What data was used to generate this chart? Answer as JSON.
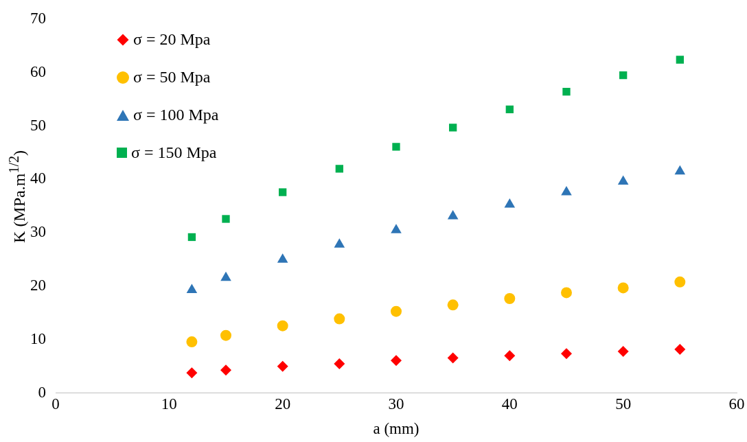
{
  "chart_data": {
    "type": "scatter",
    "xlabel": "a (mm)",
    "ylabel": "K (MPa.m$^{1/2}$)",
    "x": [
      12,
      15,
      20,
      25,
      30,
      35,
      40,
      45,
      50,
      55
    ],
    "series": [
      {
        "name": "σ = 20 Mpa",
        "color": "#ff0000",
        "marker": "diamond",
        "values": [
          3.8,
          4.3,
          5.0,
          5.5,
          6.1,
          6.6,
          7.0,
          7.4,
          7.8,
          8.2
        ]
      },
      {
        "name": "σ = 50 Mpa",
        "color": "#ffc000",
        "marker": "circle",
        "values": [
          9.6,
          10.8,
          12.6,
          13.9,
          15.3,
          16.5,
          17.7,
          18.8,
          19.7,
          20.8
        ]
      },
      {
        "name": "σ = 100 Mpa",
        "color": "#2e75b6",
        "marker": "triangle",
        "values": [
          19.3,
          21.6,
          25.0,
          27.8,
          30.5,
          33.1,
          35.3,
          37.6,
          39.6,
          41.5
        ]
      },
      {
        "name": "σ = 150 Mpa",
        "color": "#00b050",
        "marker": "square",
        "values": [
          29.2,
          32.6,
          37.6,
          42.0,
          46.1,
          49.7,
          53.1,
          56.4,
          59.5,
          62.4
        ]
      }
    ],
    "xlim": [
      0,
      60
    ],
    "xticks": [
      0,
      10,
      20,
      30,
      40,
      50,
      60
    ],
    "ylim": [
      0,
      70
    ],
    "yticks": [
      0,
      10,
      20,
      30,
      40,
      50,
      60,
      70
    ],
    "grid": false,
    "legend": "top left"
  }
}
